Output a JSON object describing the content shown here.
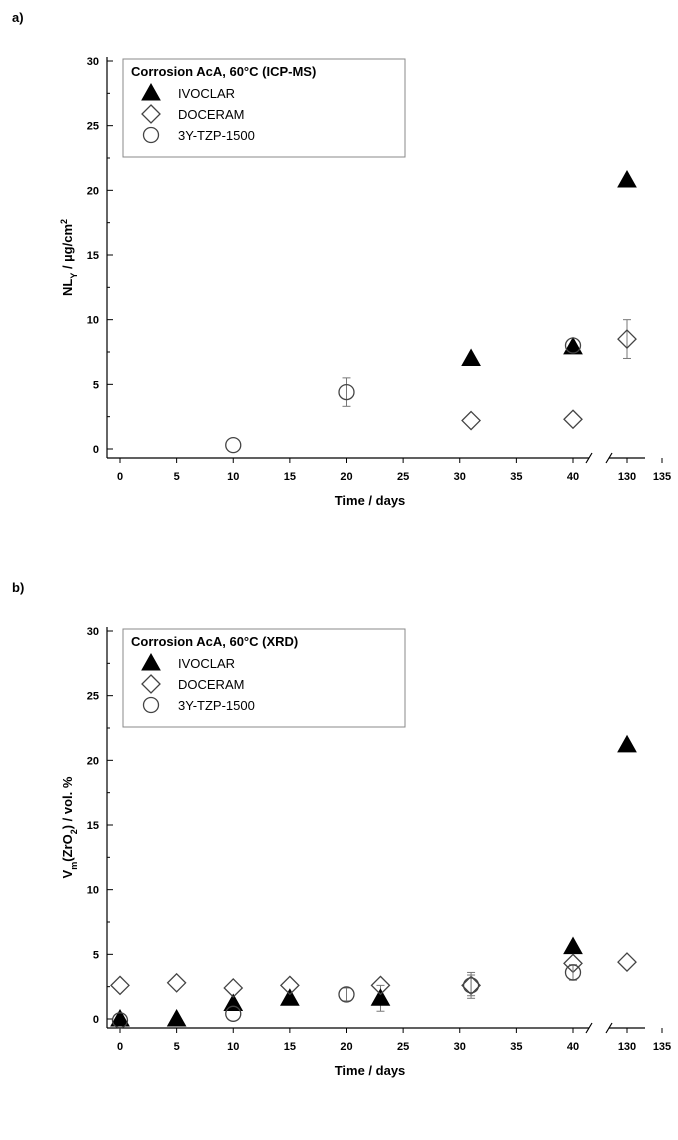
{
  "chart_data": [
    {
      "type": "scatter",
      "panel_label": "a)",
      "ylabel": "NL_Y / µg/cm^2",
      "xlabel": "Time / days",
      "ylim": [
        0,
        30
      ],
      "yticks": [
        0,
        5,
        10,
        15,
        20,
        25,
        30
      ],
      "xticks": [
        0,
        5,
        10,
        15,
        20,
        25,
        30,
        35,
        40,
        130,
        135
      ],
      "x_axis_break": [
        42,
        128
      ],
      "legend": {
        "title": "Corrosion AcA, 60°C (ICP-MS)",
        "placement": "top-left",
        "entries": [
          "IVOCLAR",
          "DOCERAM",
          "3Y-TZP-1500"
        ]
      },
      "series": [
        {
          "name": "IVOCLAR",
          "marker": "filled-triangle",
          "points": [
            {
              "x": 31,
              "y": 7.0
            },
            {
              "x": 40,
              "y": 7.9
            },
            {
              "x": 130,
              "y": 20.8
            }
          ]
        },
        {
          "name": "DOCERAM",
          "marker": "open-diamond",
          "points": [
            {
              "x": 31,
              "y": 2.2
            },
            {
              "x": 40,
              "y": 2.3
            },
            {
              "x": 130,
              "y": 8.5,
              "err": 1.5
            }
          ]
        },
        {
          "name": "3Y-TZP-1500",
          "marker": "open-circle",
          "points": [
            {
              "x": 10,
              "y": 0.3
            },
            {
              "x": 20,
              "y": 4.4,
              "err": 1.1
            },
            {
              "x": 40,
              "y": 8.0
            }
          ]
        }
      ]
    },
    {
      "type": "scatter",
      "panel_label": "b)",
      "ylabel": "V_m(ZrO_2) / vol. %",
      "xlabel": "Time / days",
      "ylim": [
        0,
        30
      ],
      "yticks": [
        0,
        5,
        10,
        15,
        20,
        25,
        30
      ],
      "xticks": [
        0,
        5,
        10,
        15,
        20,
        25,
        30,
        35,
        40,
        130,
        135
      ],
      "x_axis_break": [
        42,
        128
      ],
      "legend": {
        "title": "Corrosion AcA, 60°C (XRD)",
        "placement": "top-left",
        "entries": [
          "IVOCLAR",
          "DOCERAM",
          "3Y-TZP-1500"
        ]
      },
      "series": [
        {
          "name": "IVOCLAR",
          "marker": "filled-triangle",
          "points": [
            {
              "x": 0,
              "y": 0.0
            },
            {
              "x": 5,
              "y": 0.0
            },
            {
              "x": 10,
              "y": 1.2
            },
            {
              "x": 15,
              "y": 1.6
            },
            {
              "x": 23,
              "y": 1.6,
              "err": 1.0
            },
            {
              "x": 40,
              "y": 5.6
            },
            {
              "x": 130,
              "y": 21.2
            }
          ]
        },
        {
          "name": "DOCERAM",
          "marker": "open-diamond",
          "points": [
            {
              "x": 0,
              "y": 2.6
            },
            {
              "x": 5,
              "y": 2.8
            },
            {
              "x": 10,
              "y": 2.4
            },
            {
              "x": 15,
              "y": 2.6
            },
            {
              "x": 23,
              "y": 2.6
            },
            {
              "x": 31,
              "y": 2.6,
              "err": 1.0
            },
            {
              "x": 40,
              "y": 4.3
            },
            {
              "x": 130,
              "y": 4.4
            }
          ]
        },
        {
          "name": "3Y-TZP-1500",
          "marker": "open-circle",
          "points": [
            {
              "x": 0,
              "y": -0.1
            },
            {
              "x": 10,
              "y": 0.4
            },
            {
              "x": 20,
              "y": 1.9,
              "err": 0.5
            },
            {
              "x": 31,
              "y": 2.6,
              "err": 0.8
            },
            {
              "x": 40,
              "y": 3.6,
              "err": 0.6
            }
          ]
        }
      ]
    }
  ]
}
